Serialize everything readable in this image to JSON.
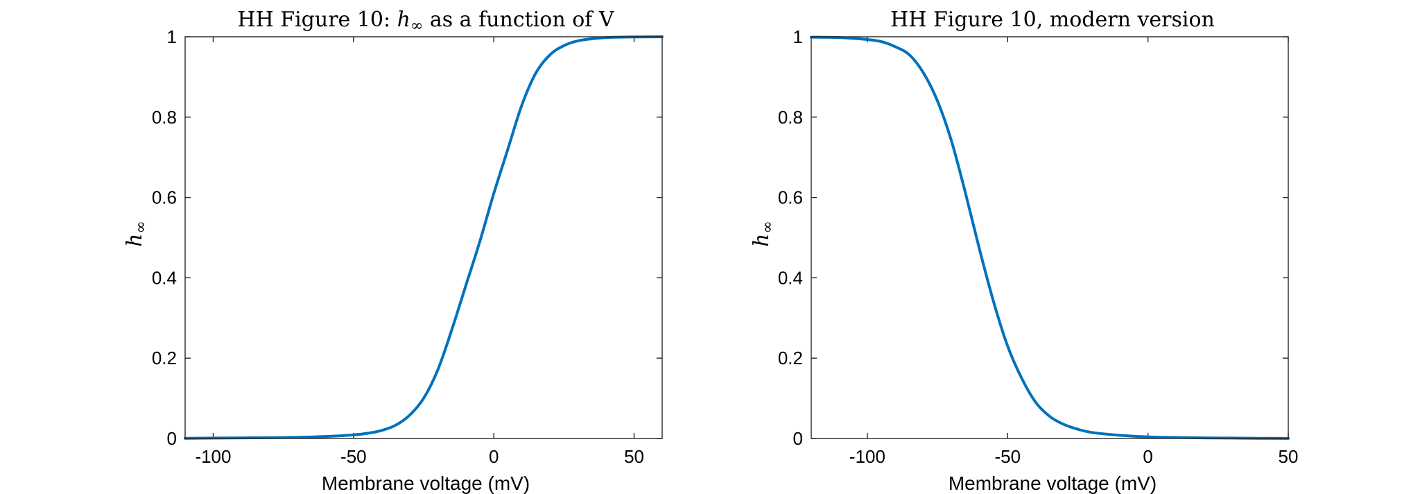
{
  "chart_data": [
    {
      "type": "line",
      "title": "HH Figure 10: h∞ as a function of V",
      "title_prefix": "HH Figure 10: ",
      "title_math": "h",
      "title_math_sub": "∞",
      "title_suffix": " as a function of V",
      "xlabel": "Membrane voltage (mV)",
      "ylabel": "h",
      "ylabel_sub": "∞",
      "xlim": [
        -110,
        60
      ],
      "ylim": [
        0,
        1
      ],
      "xticks": [
        -100,
        -50,
        0,
        50
      ],
      "xtick_labels": [
        "-100",
        "-50",
        "0",
        "50"
      ],
      "yticks": [
        0,
        0.2,
        0.4,
        0.6,
        0.8,
        1
      ],
      "ytick_labels": [
        "0",
        "0.2",
        "0.4",
        "0.6",
        "0.8",
        "1"
      ],
      "grid": false,
      "color": "#0072BD",
      "x": [
        -110,
        -100,
        -90,
        -80,
        -70,
        -60,
        -50,
        -45,
        -40,
        -35,
        -30,
        -25,
        -20,
        -15,
        -10,
        -5,
        0,
        5,
        10,
        15,
        20,
        25,
        30,
        35,
        40,
        45,
        50,
        55,
        60
      ],
      "y": [
        0.0005,
        0.001,
        0.0015,
        0.002,
        0.003,
        0.005,
        0.009,
        0.013,
        0.02,
        0.033,
        0.058,
        0.1,
        0.17,
        0.27,
        0.38,
        0.49,
        0.61,
        0.72,
        0.83,
        0.91,
        0.955,
        0.978,
        0.99,
        0.995,
        0.998,
        0.999,
        0.9995,
        0.9998,
        1.0
      ]
    },
    {
      "type": "line",
      "title": "HH Figure 10, modern version",
      "xlabel": "Membrane voltage (mV)",
      "ylabel": "h",
      "ylabel_sub": "∞",
      "xlim": [
        -120,
        50
      ],
      "ylim": [
        0,
        1
      ],
      "xticks": [
        -100,
        -50,
        0,
        50
      ],
      "xtick_labels": [
        "-100",
        "-50",
        "0",
        "50"
      ],
      "yticks": [
        0,
        0.2,
        0.4,
        0.6,
        0.8,
        1
      ],
      "ytick_labels": [
        "0",
        "0.2",
        "0.4",
        "0.6",
        "0.8",
        "1"
      ],
      "grid": false,
      "color": "#0072BD",
      "x": [
        -120,
        -110,
        -100,
        -95,
        -90,
        -85,
        -80,
        -75,
        -70,
        -65,
        -60,
        -55,
        -50,
        -45,
        -40,
        -35,
        -30,
        -25,
        -20,
        -10,
        0,
        10,
        20,
        30,
        40,
        50
      ],
      "y": [
        0.999,
        0.998,
        0.993,
        0.988,
        0.975,
        0.955,
        0.91,
        0.84,
        0.74,
        0.61,
        0.47,
        0.34,
        0.23,
        0.15,
        0.09,
        0.055,
        0.035,
        0.023,
        0.015,
        0.008,
        0.004,
        0.0025,
        0.0015,
        0.001,
        0.0005,
        0.0003
      ]
    }
  ]
}
